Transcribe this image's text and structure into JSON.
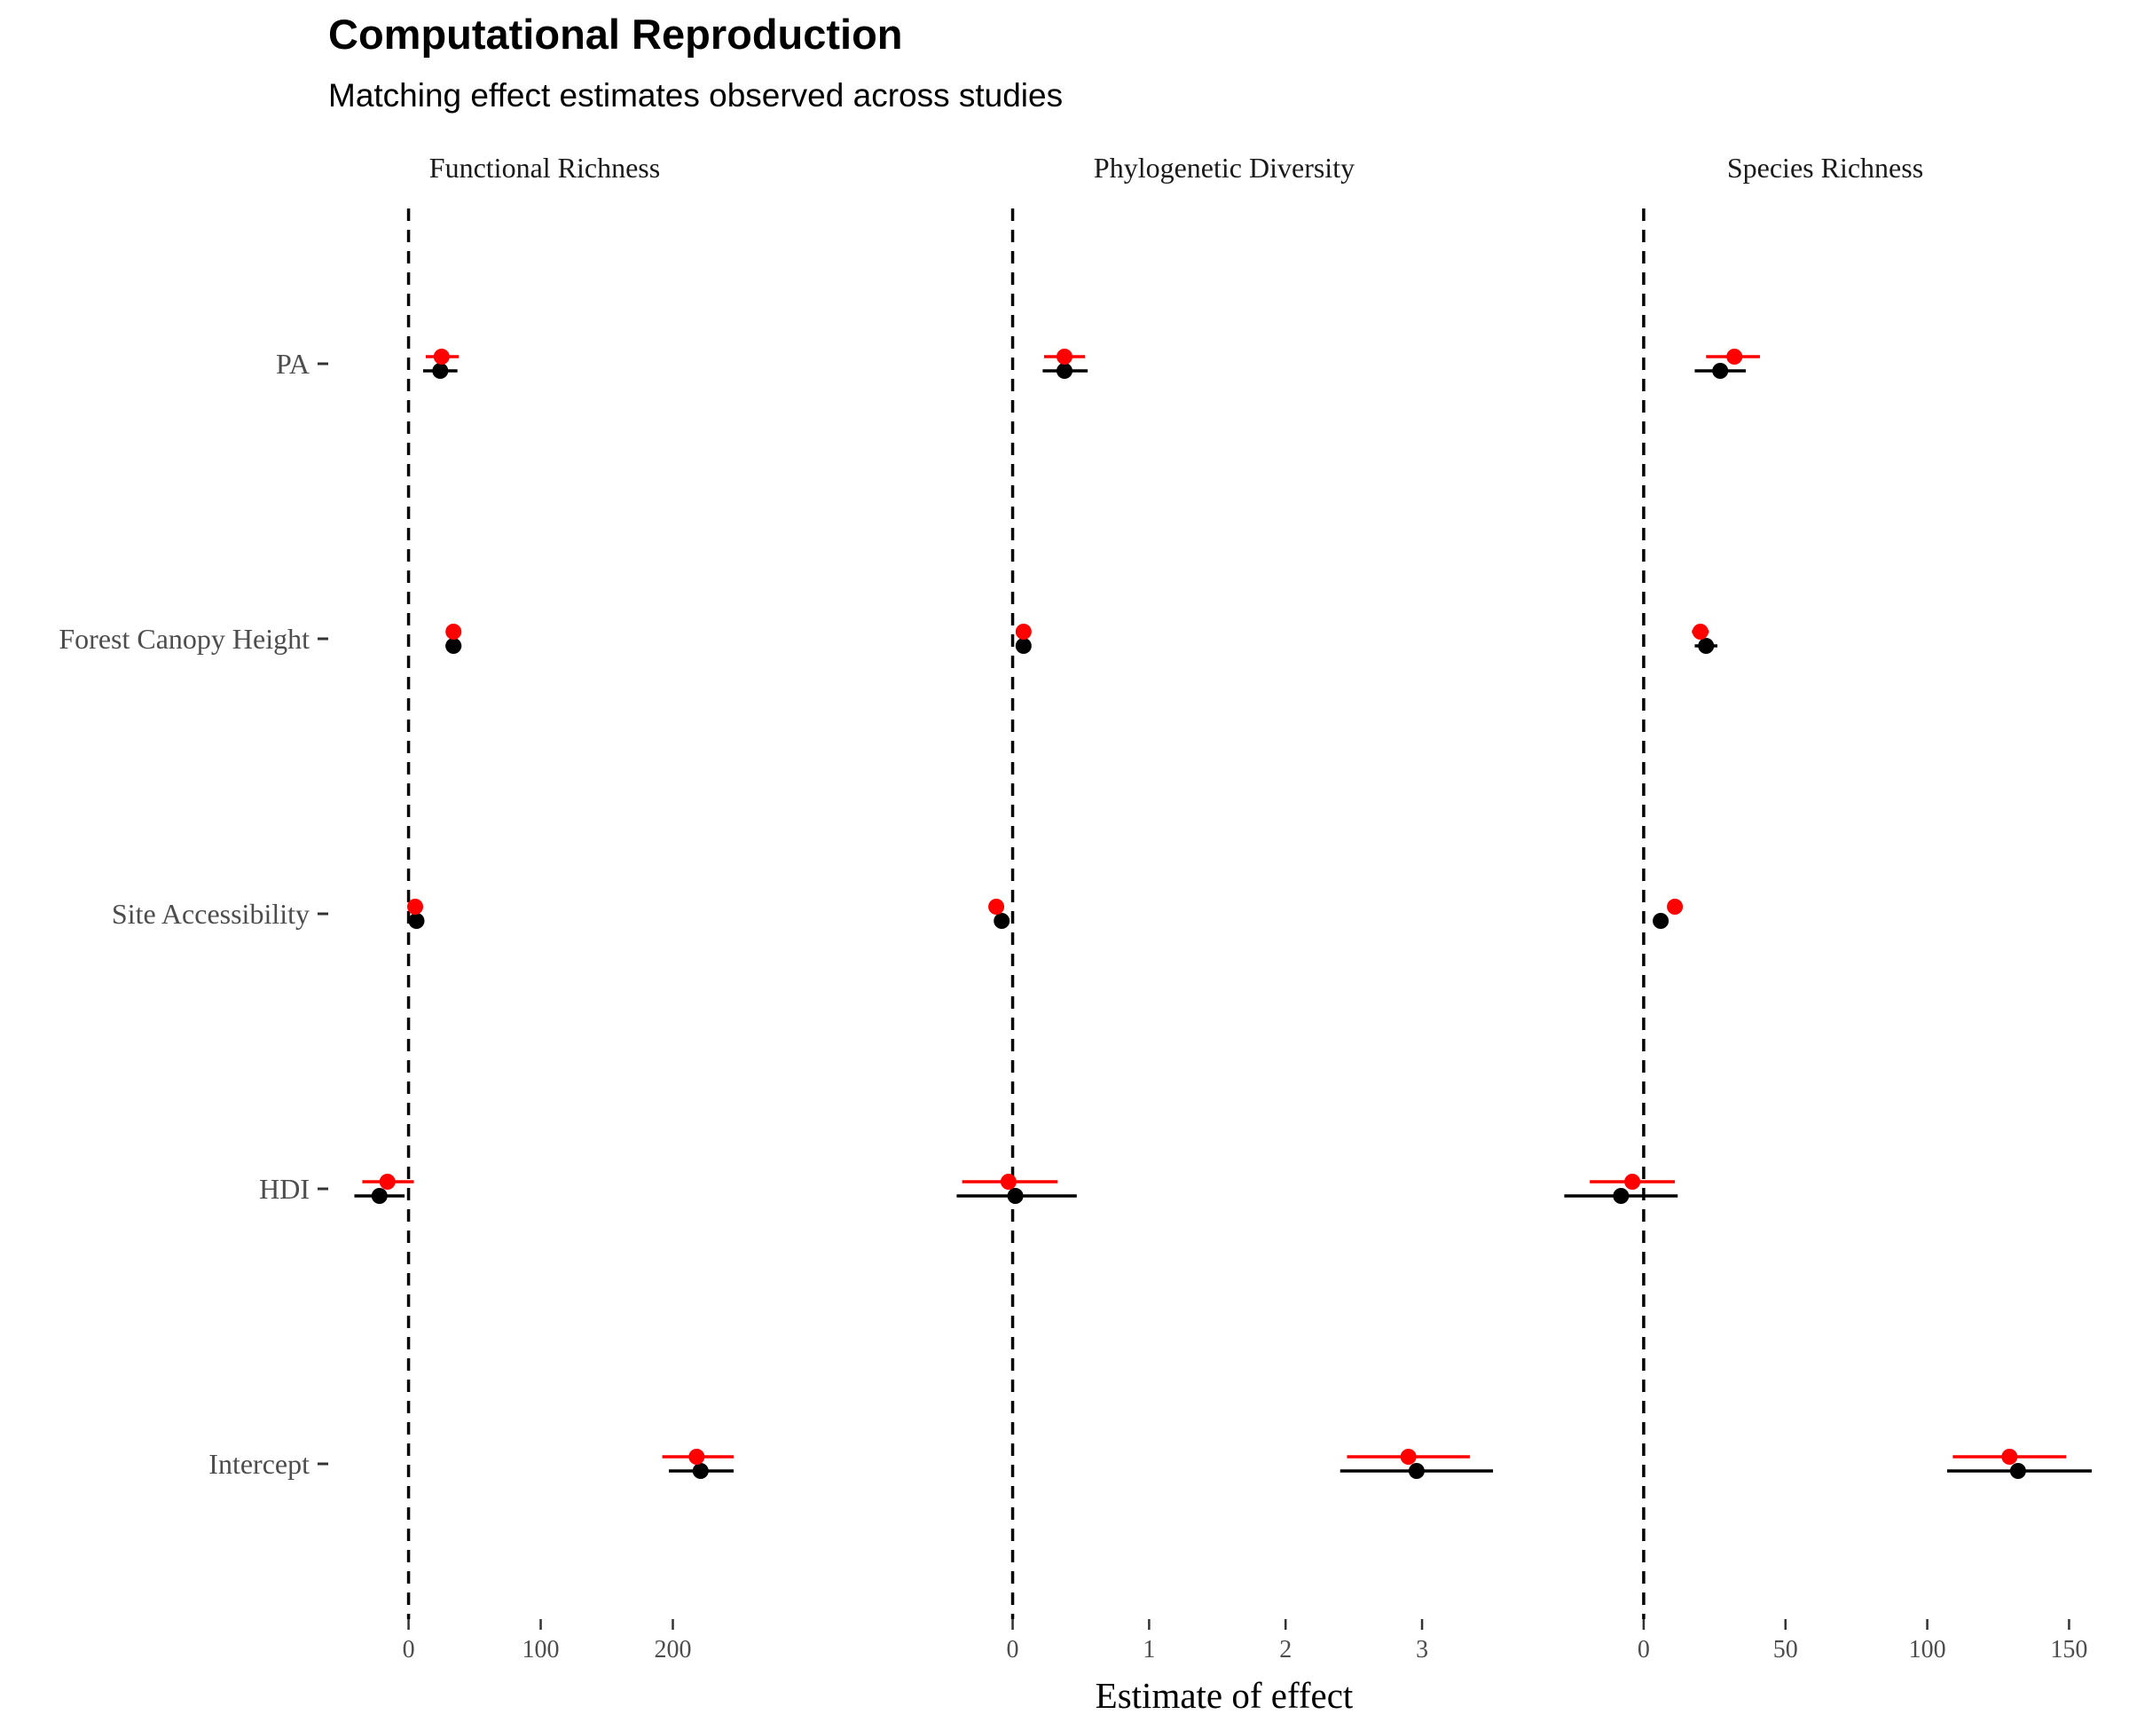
{
  "chart_data": {
    "type": "forest",
    "title": "Computational Reproduction",
    "subtitle": "Matching effect estimates observed across studies",
    "xlabel": "Estimate of effect",
    "ylabel": "",
    "terms": [
      "PA",
      "Forest Canopy Height",
      "Site Accessibility",
      "HDI",
      "Intercept"
    ],
    "series_colors": {
      "reproduction": "#ff0000",
      "original": "#000000"
    },
    "reference_line": 0,
    "grid": false,
    "panels": [
      {
        "label": "Functional Richness",
        "xlim": [
          -42,
          248
        ],
        "xticks": [
          0,
          100,
          200
        ],
        "estimates": {
          "reproduction": [
            {
              "term": "PA",
              "estimate": 25,
              "low": 13,
              "high": 38
            },
            {
              "term": "Forest Canopy Height",
              "estimate": 34,
              "low": 30,
              "high": 38
            },
            {
              "term": "Site Accessibility",
              "estimate": 5,
              "low": 4,
              "high": 6
            },
            {
              "term": "HDI",
              "estimate": -16,
              "low": -35,
              "high": 4
            },
            {
              "term": "Intercept",
              "estimate": 218,
              "low": 192,
              "high": 246
            }
          ],
          "original": [
            {
              "term": "PA",
              "estimate": 24,
              "low": 11,
              "high": 37
            },
            {
              "term": "Forest Canopy Height",
              "estimate": 34,
              "low": 28,
              "high": 40
            },
            {
              "term": "Site Accessibility",
              "estimate": 6,
              "low": 5,
              "high": 7
            },
            {
              "term": "HDI",
              "estimate": -22,
              "low": -41,
              "high": -3
            },
            {
              "term": "Intercept",
              "estimate": 221,
              "low": 197,
              "high": 246
            }
          ]
        }
      },
      {
        "label": "Phylogenetic Diversity",
        "xlim": [
          -0.4,
          3.5
        ],
        "xticks": [
          0,
          1,
          2,
          3
        ],
        "estimates": {
          "reproduction": [
            {
              "term": "PA",
              "estimate": 0.38,
              "low": 0.23,
              "high": 0.53
            },
            {
              "term": "Forest Canopy Height",
              "estimate": 0.08,
              "low": 0.05,
              "high": 0.11
            },
            {
              "term": "Site Accessibility",
              "estimate": -0.12,
              "low": -0.13,
              "high": -0.11
            },
            {
              "term": "HDI",
              "estimate": -0.03,
              "low": -0.37,
              "high": 0.33
            },
            {
              "term": "Intercept",
              "estimate": 2.9,
              "low": 2.45,
              "high": 3.35
            }
          ],
          "original": [
            {
              "term": "PA",
              "estimate": 0.38,
              "low": 0.22,
              "high": 0.55
            },
            {
              "term": "Forest Canopy Height",
              "estimate": 0.08,
              "low": 0.05,
              "high": 0.11
            },
            {
              "term": "Site Accessibility",
              "estimate": -0.08,
              "low": -0.09,
              "high": -0.07
            },
            {
              "term": "HDI",
              "estimate": 0.02,
              "low": -0.41,
              "high": 0.47
            },
            {
              "term": "Intercept",
              "estimate": 2.96,
              "low": 2.4,
              "high": 3.52
            }
          ]
        }
      },
      {
        "label": "Species Richness",
        "xlim": [
          -30,
          158
        ],
        "xticks": [
          0,
          50,
          100,
          150
        ],
        "estimates": {
          "reproduction": [
            {
              "term": "PA",
              "estimate": 32,
              "low": 22,
              "high": 41
            },
            {
              "term": "Forest Canopy Height",
              "estimate": 20,
              "low": 17,
              "high": 23
            },
            {
              "term": "Site Accessibility",
              "estimate": 11,
              "low": 10,
              "high": 12
            },
            {
              "term": "HDI",
              "estimate": -4,
              "low": -19,
              "high": 11
            },
            {
              "term": "Intercept",
              "estimate": 129,
              "low": 109,
              "high": 149
            }
          ],
          "original": [
            {
              "term": "PA",
              "estimate": 27,
              "low": 18,
              "high": 36
            },
            {
              "term": "Forest Canopy Height",
              "estimate": 22,
              "low": 18,
              "high": 26
            },
            {
              "term": "Site Accessibility",
              "estimate": 6,
              "low": 5,
              "high": 7
            },
            {
              "term": "HDI",
              "estimate": -8,
              "low": -28,
              "high": 12
            },
            {
              "term": "Intercept",
              "estimate": 132,
              "low": 107,
              "high": 158
            }
          ]
        }
      }
    ]
  }
}
